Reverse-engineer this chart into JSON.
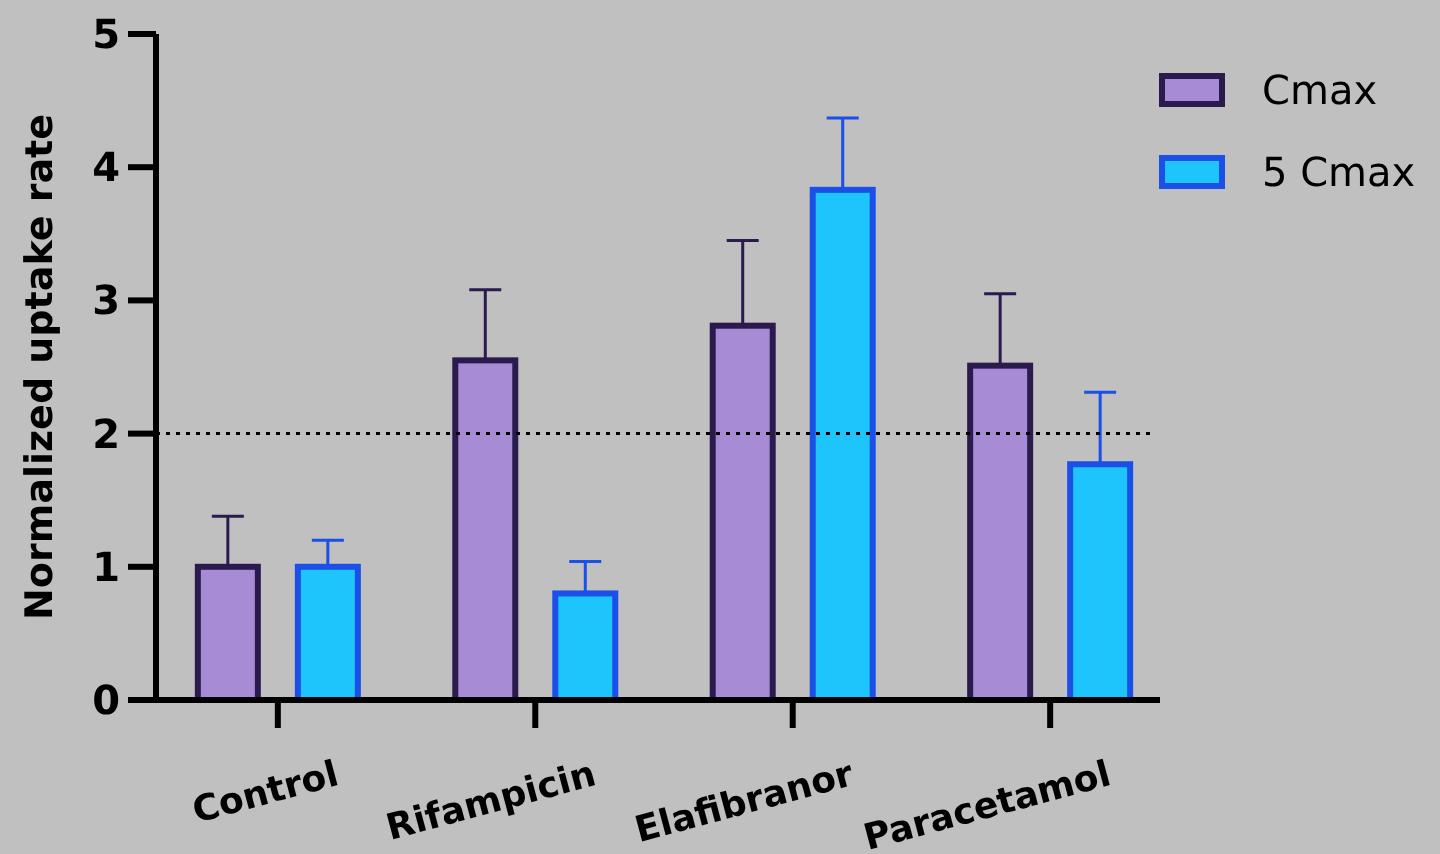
{
  "chart_data": {
    "type": "bar",
    "ylabel": "Normalized uptake rate",
    "categories": [
      "Control",
      "Rifampicin",
      "Elafibranor",
      "Paracetamol"
    ],
    "series": [
      {
        "name": "Cmax",
        "color": "#a78bd4",
        "values": [
          1.0,
          2.55,
          2.81,
          2.51
        ],
        "errors": [
          [
            1.0,
            1.38
          ],
          [
            2.55,
            3.08
          ],
          [
            2.81,
            3.45
          ],
          [
            2.51,
            3.05
          ]
        ]
      },
      {
        "name": "5 Cmax",
        "color": "#1ec5fc",
        "values": [
          1.0,
          0.8,
          3.83,
          1.77
        ],
        "errors": [
          [
            1.0,
            1.2
          ],
          [
            0.8,
            1.04
          ],
          [
            3.83,
            4.37
          ],
          [
            1.77,
            2.31
          ]
        ]
      }
    ],
    "ylim": [
      0,
      5
    ],
    "yticks": [
      0,
      1,
      2,
      3,
      4,
      5
    ],
    "grid": false,
    "legend": "top right",
    "ref_lines": [
      {
        "axis": "y",
        "value": 2,
        "line_style": "dotted",
        "color": "#000000"
      }
    ]
  }
}
